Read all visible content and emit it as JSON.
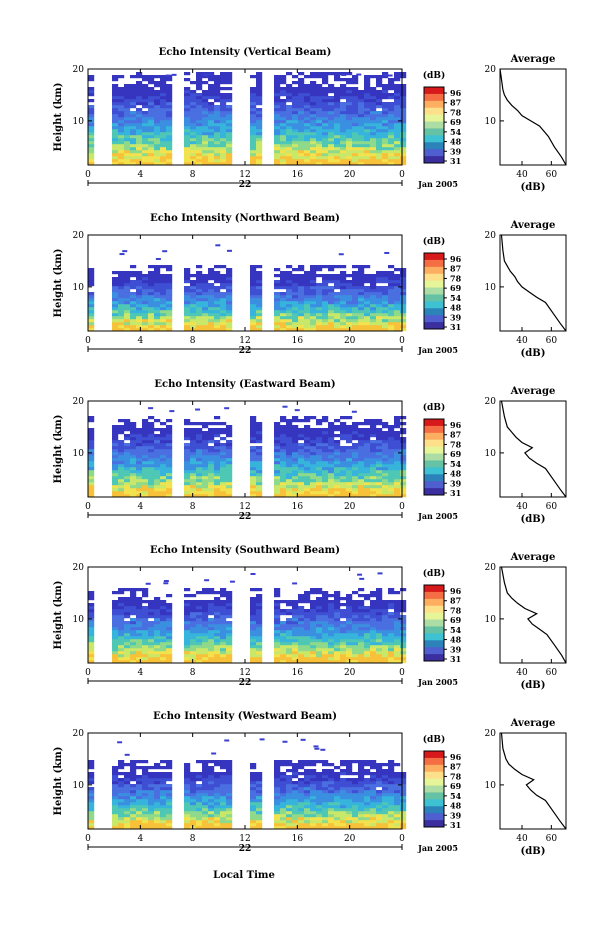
{
  "figure": {
    "xlabel": "Local Time",
    "date_label": "Jan 2005",
    "day_label": "22",
    "height_label": "Height (km)",
    "colorbar_unit": "(dB)",
    "colorbar_ticks": [
      "96",
      "87",
      "78",
      "69",
      "54",
      "48",
      "39",
      "31"
    ],
    "colorbar_colors": [
      "#d7191c",
      "#f46d43",
      "#fdae61",
      "#fee08b",
      "#e6f598",
      "#abdda4",
      "#66c2a5",
      "#3ec1d3",
      "#2b83ba",
      "#4f5fd0",
      "#3b2fa0"
    ],
    "profile_title": "Average",
    "profile_xlabel": "(dB)"
  },
  "chart_data": [
    {
      "type": "heatmap",
      "title": "Echo Intensity (Vertical Beam)",
      "xlabel": "Local Time",
      "ylabel": "Height (km)",
      "xlim": [
        0,
        24
      ],
      "ylim": [
        1.5,
        20
      ],
      "xticks": [
        "0",
        "4",
        "8",
        "12",
        "16",
        "20",
        "0"
      ],
      "yticks": [
        "10",
        "20"
      ],
      "colorbar_label": "(dB)",
      "data_gaps_hours": [
        [
          0.6,
          1.5
        ],
        [
          6.8,
          7.3
        ],
        [
          11.4,
          12.2
        ],
        [
          13.6,
          14.2
        ]
      ],
      "echo_top_km": 19.5,
      "profile": {
        "title": "Average",
        "xlabel": "(dB)",
        "xticks": [
          "40",
          "60"
        ],
        "yticks": [
          "10",
          "20"
        ],
        "xlim": [
          25,
          70
        ],
        "ylim": [
          1.5,
          20
        ],
        "x": [
          70,
          67,
          62,
          58,
          52,
          46,
          40,
          37,
          33,
          30,
          28,
          27,
          26,
          25
        ],
        "y": [
          1.5,
          3,
          5,
          7,
          9,
          10,
          11,
          12,
          13,
          14,
          15,
          16,
          18,
          20
        ]
      }
    },
    {
      "type": "heatmap",
      "title": "Echo Intensity (Northward Beam)",
      "xlabel": "Local Time",
      "ylabel": "Height (km)",
      "xlim": [
        0,
        24
      ],
      "ylim": [
        1.5,
        20
      ],
      "xticks": [
        "0",
        "4",
        "8",
        "12",
        "16",
        "20",
        "0"
      ],
      "yticks": [
        "10",
        "20"
      ],
      "colorbar_label": "(dB)",
      "data_gaps_hours": [
        [
          0.6,
          1.5
        ],
        [
          6.8,
          7.3
        ],
        [
          11.4,
          12.2
        ],
        [
          13.6,
          14.2
        ]
      ],
      "echo_top_km": 14,
      "profile": {
        "title": "Average",
        "xlabel": "(dB)",
        "xticks": [
          "40",
          "60"
        ],
        "yticks": [
          "10",
          "20"
        ],
        "xlim": [
          25,
          70
        ],
        "ylim": [
          1.5,
          20
        ],
        "x": [
          70,
          66,
          61,
          56,
          50,
          45,
          40,
          37,
          35,
          32,
          30,
          28,
          27,
          26
        ],
        "y": [
          1.5,
          3,
          5,
          7,
          8,
          9,
          10,
          11,
          12,
          13,
          14,
          15,
          17,
          20
        ]
      }
    },
    {
      "type": "heatmap",
      "title": "Echo Intensity (Eastward Beam)",
      "xlabel": "Local Time",
      "ylabel": "Height (km)",
      "xlim": [
        0,
        24
      ],
      "ylim": [
        1.5,
        20
      ],
      "xticks": [
        "0",
        "4",
        "8",
        "12",
        "16",
        "20",
        "0"
      ],
      "yticks": [
        "10",
        "20"
      ],
      "colorbar_label": "(dB)",
      "data_gaps_hours": [
        [
          0.6,
          1.5
        ],
        [
          6.8,
          7.3
        ],
        [
          11.4,
          12.2
        ],
        [
          13.6,
          14.2
        ]
      ],
      "echo_top_km": 17,
      "profile": {
        "title": "Average",
        "xlabel": "(dB)",
        "xticks": [
          "40",
          "60"
        ],
        "yticks": [
          "10",
          "20"
        ],
        "xlim": [
          25,
          70
        ],
        "ylim": [
          1.5,
          20
        ],
        "x": [
          70,
          66,
          61,
          56,
          50,
          45,
          42,
          47,
          40,
          36,
          33,
          30,
          28,
          26
        ],
        "y": [
          1.5,
          3,
          5,
          7,
          8,
          9,
          10,
          11,
          12,
          13,
          14,
          15,
          17,
          20
        ]
      }
    },
    {
      "type": "heatmap",
      "title": "Echo Intensity (Southward Beam)",
      "xlabel": "Local Time",
      "ylabel": "Height (km)",
      "xlim": [
        0,
        24
      ],
      "ylim": [
        1.5,
        20
      ],
      "xticks": [
        "0",
        "4",
        "8",
        "12",
        "16",
        "20",
        "0"
      ],
      "yticks": [
        "10",
        "20"
      ],
      "colorbar_label": "(dB)",
      "data_gaps_hours": [
        [
          0.6,
          1.5
        ],
        [
          6.8,
          7.3
        ],
        [
          11.4,
          12.2
        ],
        [
          13.6,
          14.2
        ]
      ],
      "echo_top_km": 16,
      "profile": {
        "title": "Average",
        "xlabel": "(dB)",
        "xticks": [
          "40",
          "60"
        ],
        "yticks": [
          "10",
          "20"
        ],
        "xlim": [
          25,
          70
        ],
        "ylim": [
          1.5,
          20
        ],
        "x": [
          70,
          67,
          62,
          57,
          52,
          47,
          44,
          50,
          42,
          37,
          33,
          30,
          28,
          26
        ],
        "y": [
          1.5,
          3,
          5,
          7,
          8,
          9,
          10,
          11,
          12,
          13,
          14,
          15,
          17,
          20
        ]
      }
    },
    {
      "type": "heatmap",
      "title": "Echo Intensity (Westward Beam)",
      "xlabel": "Local Time",
      "ylabel": "Height (km)",
      "xlim": [
        0,
        24
      ],
      "ylim": [
        1.5,
        20
      ],
      "xticks": [
        "0",
        "4",
        "8",
        "12",
        "16",
        "20",
        "0"
      ],
      "yticks": [
        "10",
        "20"
      ],
      "colorbar_label": "(dB)",
      "data_gaps_hours": [
        [
          0.6,
          1.5
        ],
        [
          6.8,
          7.3
        ],
        [
          11.4,
          12.2
        ],
        [
          13.6,
          14.2
        ]
      ],
      "echo_top_km": 15,
      "profile": {
        "title": "Average",
        "xlabel": "(dB)",
        "xticks": [
          "40",
          "60"
        ],
        "yticks": [
          "10",
          "20"
        ],
        "xlim": [
          25,
          70
        ],
        "ylim": [
          1.5,
          20
        ],
        "x": [
          70,
          66,
          61,
          56,
          50,
          46,
          43,
          48,
          40,
          35,
          31,
          29,
          27,
          26
        ],
        "y": [
          1.5,
          3,
          5,
          7,
          8,
          9,
          10,
          11,
          12,
          13,
          14,
          15,
          17,
          20
        ]
      }
    }
  ]
}
